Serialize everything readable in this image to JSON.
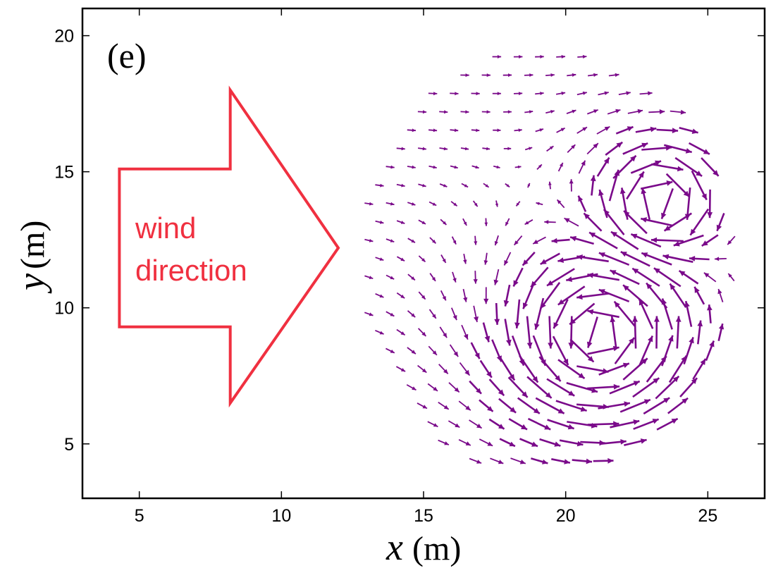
{
  "chart_data": {
    "type": "quiver",
    "panel_label": "(e)",
    "xlabel": {
      "var": "x",
      "unit": "(m)"
    },
    "ylabel": {
      "var": "y",
      "unit": "(m)"
    },
    "xlim": [
      3,
      27
    ],
    "ylim": [
      3,
      21
    ],
    "xticks": [
      5,
      10,
      15,
      20,
      25
    ],
    "yticks": [
      5,
      10,
      15,
      20
    ],
    "grid": false,
    "arrow_color": "#7a0a8a",
    "annotation": {
      "lines": [
        "wind",
        "direction"
      ],
      "color": "#f03040",
      "arrow_polygon": [
        [
          4.3,
          15.1
        ],
        [
          8.2,
          15.1
        ],
        [
          8.2,
          18.0
        ],
        [
          12.0,
          12.2
        ],
        [
          8.2,
          6.5
        ],
        [
          8.2,
          9.3
        ],
        [
          4.3,
          9.3
        ]
      ]
    },
    "vortices": [
      {
        "center": [
          21.2,
          9.0
        ],
        "radius": 4.5,
        "rotation": "ccw"
      },
      {
        "center": [
          23.3,
          13.9
        ],
        "radius": 2.9,
        "rotation": "cw"
      }
    ],
    "field_region": {
      "center": [
        19.3,
        11.6
      ],
      "rx": 6.6,
      "ry": 7.9
    },
    "arrow_spacing": 0.75
  }
}
